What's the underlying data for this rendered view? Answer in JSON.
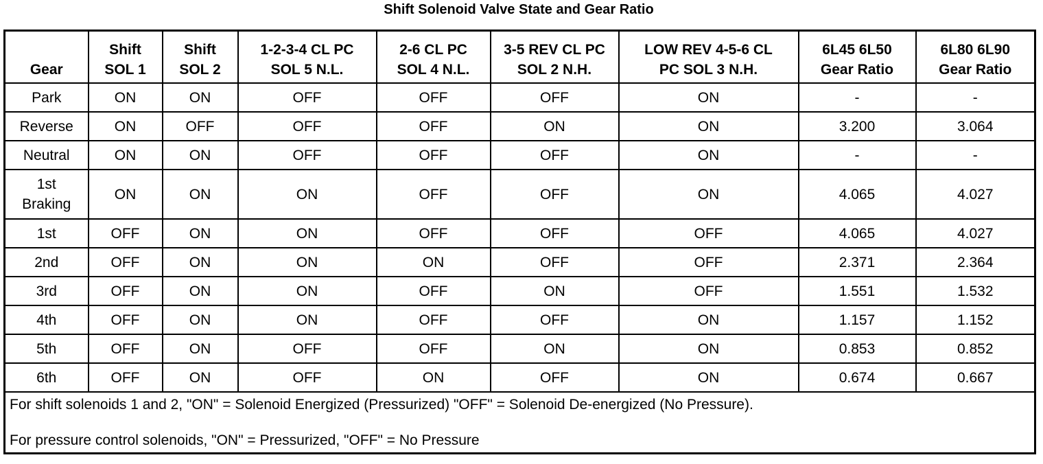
{
  "title": "Shift Solenoid Valve State and Gear Ratio",
  "columns": [
    [
      "Gear"
    ],
    [
      "Shift",
      "SOL 1"
    ],
    [
      "Shift",
      "SOL 2"
    ],
    [
      "1-2-3-4 CL PC",
      "SOL 5 N.L."
    ],
    [
      "2-6 CL PC",
      "SOL 4 N.L."
    ],
    [
      "3-5 REV CL PC",
      "SOL 2 N.H."
    ],
    [
      "LOW REV 4-5-6 CL",
      "PC SOL 3 N.H."
    ],
    [
      "6L45 6L50",
      "Gear Ratio"
    ],
    [
      "6L80 6L90",
      "Gear Ratio"
    ]
  ],
  "rows": [
    [
      [
        "Park"
      ],
      "ON",
      "ON",
      "OFF",
      "OFF",
      "OFF",
      "ON",
      "-",
      "-"
    ],
    [
      [
        "Reverse"
      ],
      "ON",
      "OFF",
      "OFF",
      "OFF",
      "ON",
      "ON",
      "3.200",
      "3.064"
    ],
    [
      [
        "Neutral"
      ],
      "ON",
      "ON",
      "OFF",
      "OFF",
      "OFF",
      "ON",
      "-",
      "-"
    ],
    [
      [
        "1st",
        "Braking"
      ],
      "ON",
      "ON",
      "ON",
      "OFF",
      "OFF",
      "ON",
      "4.065",
      "4.027"
    ],
    [
      [
        "1st"
      ],
      "OFF",
      "ON",
      "ON",
      "OFF",
      "OFF",
      "OFF",
      "4.065",
      "4.027"
    ],
    [
      [
        "2nd"
      ],
      "OFF",
      "ON",
      "ON",
      "ON",
      "OFF",
      "OFF",
      "2.371",
      "2.364"
    ],
    [
      [
        "3rd"
      ],
      "OFF",
      "ON",
      "ON",
      "OFF",
      "ON",
      "OFF",
      "1.551",
      "1.532"
    ],
    [
      [
        "4th"
      ],
      "OFF",
      "ON",
      "ON",
      "OFF",
      "OFF",
      "ON",
      "1.157",
      "1.152"
    ],
    [
      [
        "5th"
      ],
      "OFF",
      "ON",
      "OFF",
      "OFF",
      "ON",
      "ON",
      "0.853",
      "0.852"
    ],
    [
      [
        "6th"
      ],
      "OFF",
      "ON",
      "OFF",
      "ON",
      "OFF",
      "ON",
      "0.674",
      "0.667"
    ]
  ],
  "notes": [
    "For shift solenoids 1 and 2, \"ON\" = Solenoid Energized (Pressurized) \"OFF\" = Solenoid De-energized (No Pressure).",
    "For pressure control solenoids, \"ON\" = Pressurized, \"OFF\" = No Pressure"
  ]
}
